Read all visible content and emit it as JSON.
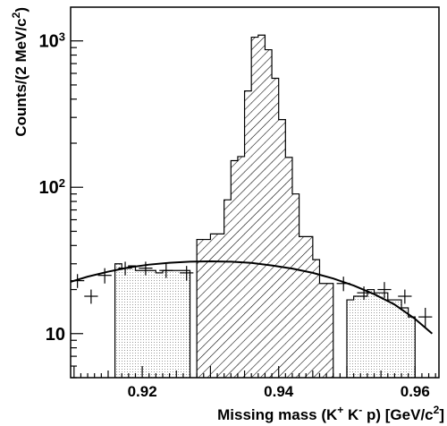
{
  "chart_data": {
    "type": "bar",
    "title": "",
    "xlabel": {
      "main": "Missing mass (K",
      "sup1": "+",
      "mid1": " K",
      "sup2": "-",
      "mid2": " p) [GeV/c",
      "sup3": "2",
      "end": "]"
    },
    "ylabel": {
      "main": "Counts/(2 MeV/c",
      "sup": "2",
      "end": ")"
    },
    "xlim": [
      0.9095,
      0.9635
    ],
    "ylim": [
      5.0,
      1700
    ],
    "yscale": "log",
    "grid": false,
    "x_ticks": [
      {
        "value": 0.92,
        "label": "0.92"
      },
      {
        "value": 0.94,
        "label": "0.94"
      },
      {
        "value": 0.96,
        "label": "0.96"
      }
    ],
    "y_ticks": [
      {
        "value": 10,
        "base": "10",
        "exp": ""
      },
      {
        "value": 100,
        "base": "10",
        "exp": "2"
      },
      {
        "value": 1000,
        "base": "10",
        "exp": "3"
      }
    ],
    "bin_width": 0.001,
    "sideband_left": {
      "range": [
        0.916,
        0.927
      ],
      "values": [
        30,
        28,
        29,
        27,
        27,
        27,
        26,
        27,
        27,
        27,
        27
      ]
    },
    "signal": {
      "range": [
        0.928,
        0.948
      ],
      "values": [
        44,
        44,
        48,
        48,
        82,
        152,
        162,
        455,
        1060,
        1095,
        870,
        555,
        290,
        160,
        90,
        46,
        46,
        32,
        22,
        22
      ]
    },
    "sideband_right": {
      "range": [
        0.95,
        0.96
      ],
      "values": [
        17,
        18,
        18,
        20,
        19,
        19,
        17,
        17,
        15,
        13
      ]
    },
    "data_points": [
      {
        "x": 0.9105,
        "y": 23,
        "err": 2.5
      },
      {
        "x": 0.9125,
        "y": 18,
        "err": 2.0
      },
      {
        "x": 0.9145,
        "y": 25,
        "err": 3.0
      },
      {
        "x": 0.9175,
        "y": 28,
        "err": 3.0
      },
      {
        "x": 0.9205,
        "y": 28,
        "err": 3.0
      },
      {
        "x": 0.9235,
        "y": 27,
        "err": 3.0
      },
      {
        "x": 0.9265,
        "y": 26,
        "err": 3.0
      },
      {
        "x": 0.9495,
        "y": 22,
        "err": 2.5
      },
      {
        "x": 0.9525,
        "y": 19,
        "err": 2.0
      },
      {
        "x": 0.9555,
        "y": 20,
        "err": 2.5
      },
      {
        "x": 0.9585,
        "y": 18,
        "err": 2.0
      },
      {
        "x": 0.9615,
        "y": 13,
        "err": 2.0
      }
    ],
    "fit_curve": {
      "x": [
        0.9095,
        0.912,
        0.915,
        0.918,
        0.921,
        0.924,
        0.927,
        0.93,
        0.933,
        0.936,
        0.939,
        0.942,
        0.945,
        0.948,
        0.951,
        0.954,
        0.957,
        0.96,
        0.9625
      ],
      "y": [
        22.6,
        24.5,
        26.5,
        28.3,
        29.6,
        30.5,
        31.0,
        31.2,
        31.0,
        30.4,
        29.2,
        27.8,
        26.0,
        23.8,
        21.3,
        18.6,
        15.8,
        12.6,
        10.0
      ]
    }
  }
}
